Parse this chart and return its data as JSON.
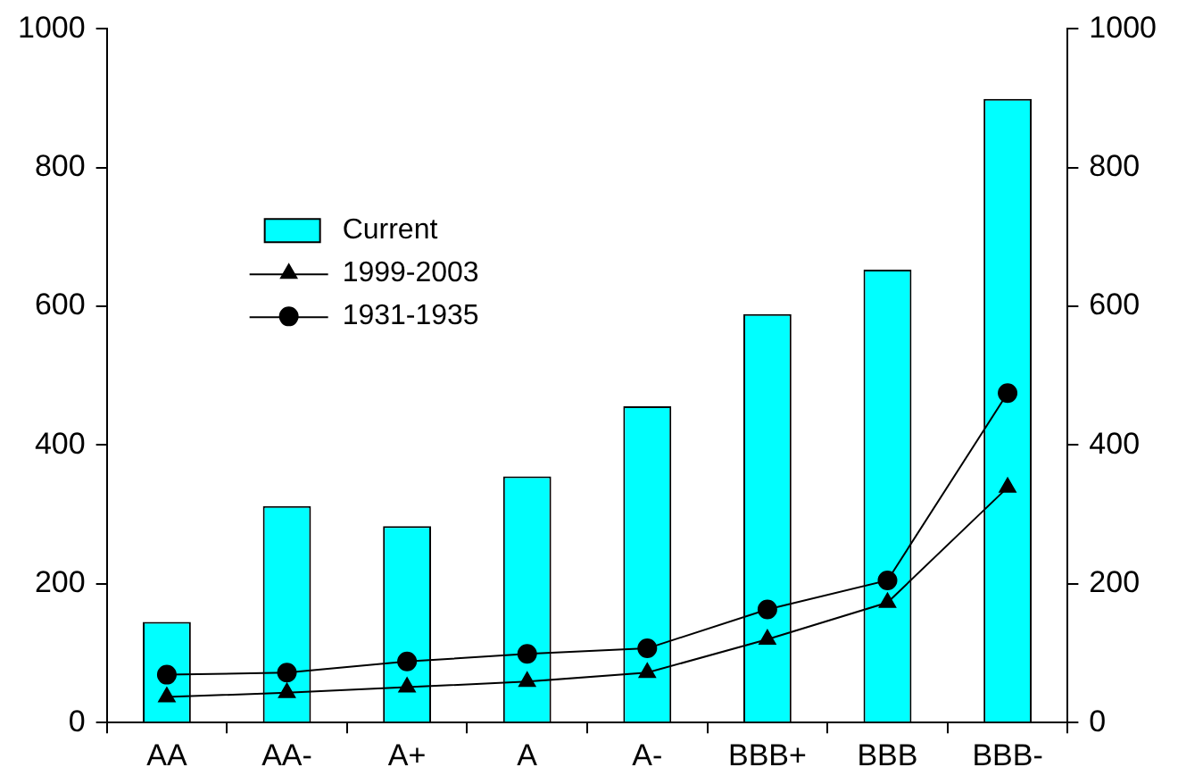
{
  "chart_data": {
    "type": "bar",
    "categories": [
      "AA",
      "AA-",
      "A+",
      "A",
      "A-",
      "BBB+",
      "BBB",
      "BBB-"
    ],
    "series": [
      {
        "name": "Current",
        "color": "#00ffff",
        "values": [
          145,
          312,
          283,
          355,
          456,
          589,
          653,
          899
        ]
      },
      {
        "name": "1999-2003",
        "type": "line",
        "color": "#000000",
        "marker": "triangle",
        "values": [
          37,
          43,
          51,
          59,
          72,
          120,
          173,
          339
        ]
      },
      {
        "name": "1931-1935",
        "type": "line",
        "color": "#000000",
        "marker": "circle",
        "values": [
          69,
          72,
          88,
          99,
          107,
          163,
          205,
          475
        ]
      }
    ],
    "ylim": [
      0,
      1000
    ],
    "yticks": [
      0,
      200,
      400,
      600,
      800,
      1000
    ],
    "y2lim": [
      0,
      1000
    ],
    "y2ticks": [
      0,
      200,
      400,
      600,
      800,
      1000
    ],
    "grid": false,
    "legend": "left"
  }
}
